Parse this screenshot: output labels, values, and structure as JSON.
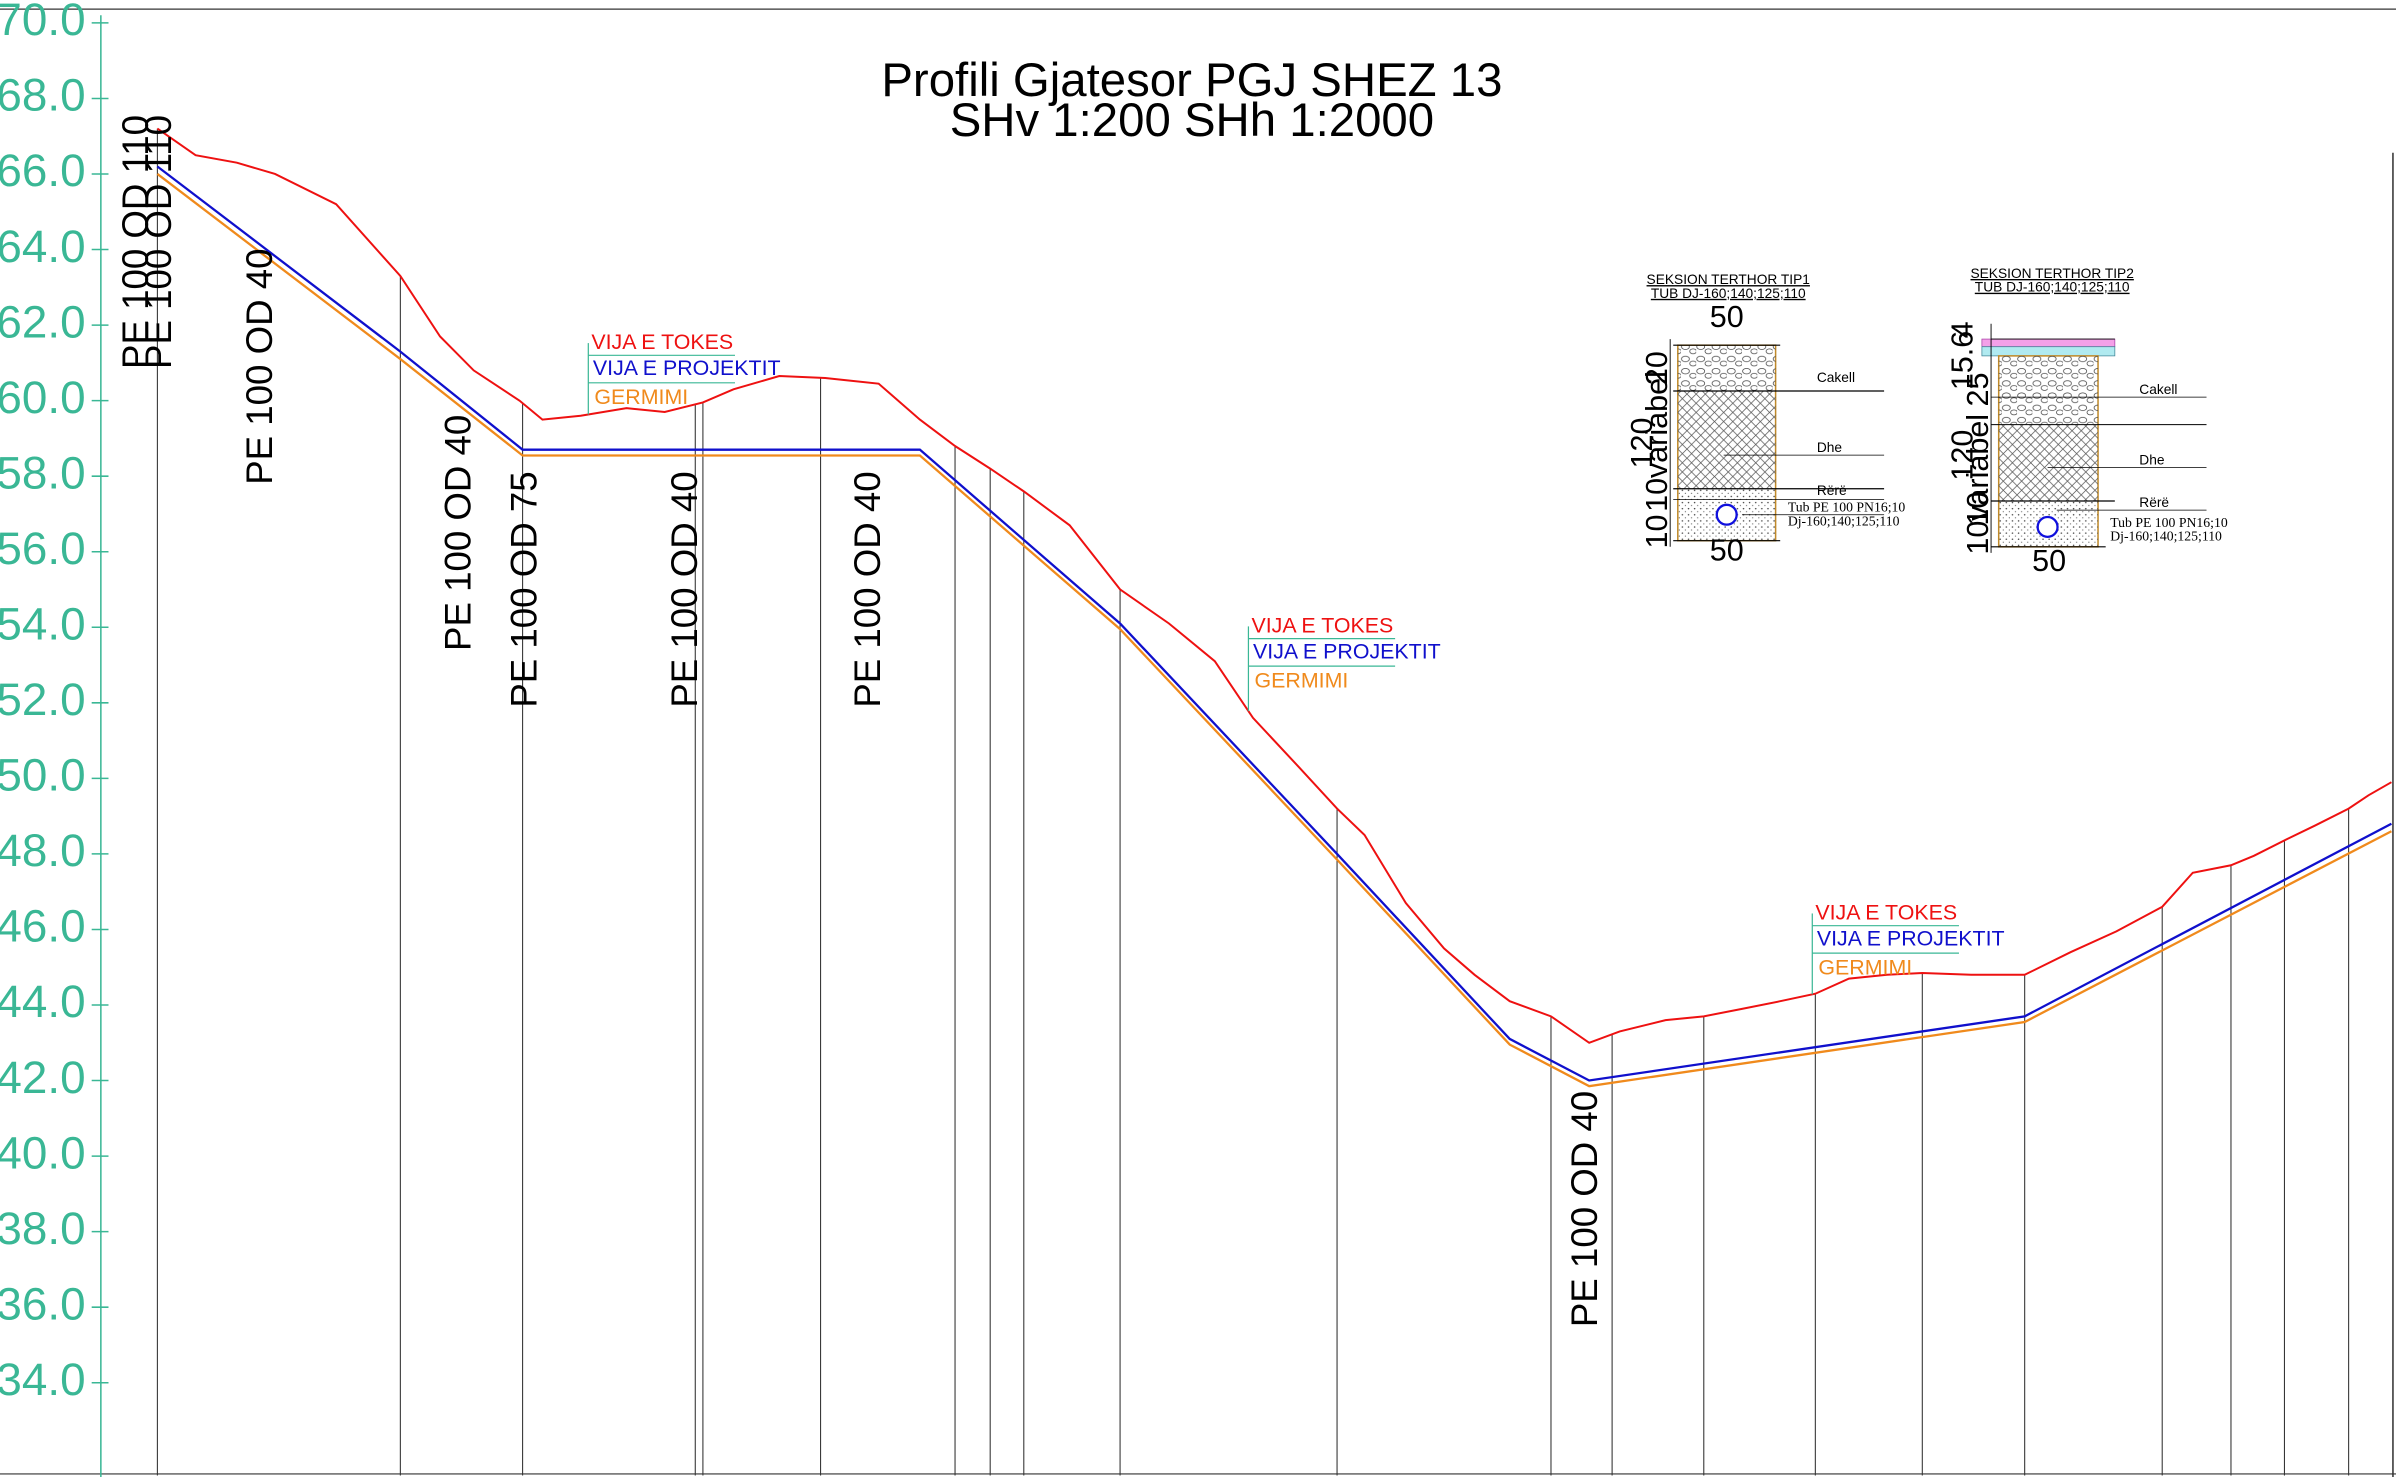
{
  "chart_data": {
    "type": "line",
    "title": "Profili Gjatesor   PGJ SHEZ 13",
    "subtitle": "SHv 1:200  SHh 1:2000",
    "yticks": [
      "70.0",
      "68.0",
      "66.0",
      "64.0",
      "62.0",
      "60.0",
      "58.0",
      "56.0",
      "54.0",
      "52.0",
      "50.0",
      "48.0",
      "46.0",
      "44.0",
      "42.0",
      "40.0",
      "38.0",
      "36.0",
      "34.0"
    ],
    "ylim": [
      32,
      70
    ],
    "colors": {
      "axis": "#3ab795",
      "ground": "#ee1111",
      "project": "#1010cc",
      "excavation": "#f08a1c"
    },
    "series": [
      {
        "name": "VIJA E TOKES",
        "x": [
          103,
          128,
          155,
          180,
          220,
          262,
          288,
          310,
          340,
          355,
          380,
          410,
          435,
          460,
          480,
          510,
          540,
          575,
          602,
          625,
          648,
          670,
          700,
          733,
          765,
          795,
          820,
          850,
          875,
          893,
          920,
          945,
          965,
          988,
          1015,
          1040,
          1060,
          1090,
          1115,
          1140,
          1165,
          1188,
          1210,
          1235,
          1258,
          1290,
          1325,
          1355,
          1385,
          1415,
          1435,
          1460,
          1475,
          1497,
          1515,
          1537,
          1550,
          1565
        ],
        "values": [
          67.2,
          66.5,
          66.3,
          66.0,
          65.2,
          63.3,
          61.7,
          60.8,
          60.0,
          59.5,
          59.6,
          59.8,
          59.7,
          59.95,
          60.3,
          60.65,
          60.6,
          60.45,
          59.5,
          58.8,
          58.2,
          57.6,
          56.7,
          55.0,
          54.1,
          53.1,
          51.6,
          50.3,
          49.2,
          48.5,
          46.7,
          45.5,
          44.8,
          44.1,
          43.7,
          43.0,
          43.3,
          43.6,
          43.7,
          43.9,
          44.1,
          44.3,
          44.7,
          44.8,
          44.85,
          44.8,
          44.8,
          45.4,
          45.95,
          46.6,
          47.5,
          47.7,
          47.95,
          48.4,
          48.75,
          49.2,
          49.55,
          49.9
        ]
      },
      {
        "name": "VIJA E PROJEKTIT",
        "x": [
          103,
          262,
          342,
          602,
          733,
          875,
          988,
          1040,
          1325,
          1565
        ],
        "values": [
          66.2,
          61.3,
          58.7,
          58.7,
          54.1,
          48.0,
          43.1,
          42.0,
          43.7,
          48.8
        ]
      },
      {
        "name": "GERMIMI",
        "x": [
          103,
          262,
          342,
          602,
          733,
          875,
          988,
          1040,
          1325,
          1565
        ],
        "values": [
          66.0,
          61.1,
          58.55,
          58.55,
          53.95,
          47.85,
          42.95,
          41.85,
          43.55,
          48.6
        ]
      }
    ],
    "stations_x": [
      103,
      262,
      342,
      455,
      460,
      537,
      625,
      648,
      670,
      733,
      875,
      1015,
      1055,
      1115,
      1188,
      1258,
      1325,
      1415,
      1460,
      1495,
      1537
    ],
    "pipe_labels": [
      {
        "text": "PE 100 OD 110",
        "x": 97,
        "y": 64.2
      },
      {
        "text": "PE 100 OD 110",
        "x": 112,
        "y": 64.2
      },
      {
        "text": "PE 100 OD 40",
        "x": 178,
        "y": 60.9
      },
      {
        "text": "PE 100 OD 40",
        "x": 308,
        "y": 56.5
      },
      {
        "text": "PE 100 OD 75",
        "x": 351,
        "y": 55.0
      },
      {
        "text": "PE 100 OD 40",
        "x": 456,
        "y": 55.0
      },
      {
        "text": "PE 100 OD 40",
        "x": 576,
        "y": 55.0
      },
      {
        "text": "PE 100 OD 40",
        "x": 1045,
        "y": 38.6
      }
    ],
    "legend_labels": {
      "ground": "VIJA E TOKES",
      "project": "VIJA E PROJEKTIT",
      "excavation": "GERMIMI"
    },
    "legend_blocks": [
      {
        "x": 385,
        "y": 61.2
      },
      {
        "x": 817,
        "y": 53.7
      },
      {
        "x": 1186,
        "y": 46.1
      }
    ]
  },
  "sections": [
    {
      "title": "SEKSION TERTHOR TIP1",
      "subtitle": "TUB DJ-160;140;125;110",
      "width_top": "50",
      "width_bottom": "50",
      "dim_total": "120",
      "dim_variable": "variabel",
      "dims": [
        "20",
        "10",
        "10"
      ],
      "layers": [
        "Cakell",
        "Dhe",
        "Rërë"
      ],
      "pipe_note1": "Tub PE 100 PN16;10",
      "pipe_note2": "Dj-160;140;125;110"
    },
    {
      "title": "SEKSION TERTHOR TIP2",
      "subtitle": "TUB DJ-160;140;125;110",
      "width_bottom": "50",
      "dim_total": "120",
      "dim_variable": "variabel",
      "dims": [
        "4",
        "15.6",
        "25",
        "10",
        "10"
      ],
      "layers": [
        "Cakell",
        "Dhe",
        "Rërë"
      ],
      "pipe_note1": "Tub PE 100 PN16;10",
      "pipe_note2": "Dj-160;140;125;110"
    }
  ]
}
